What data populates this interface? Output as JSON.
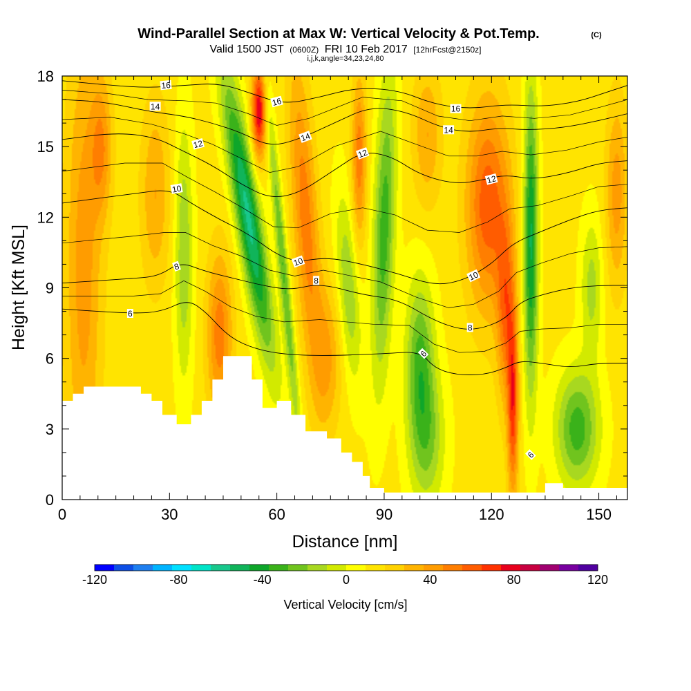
{
  "header": {
    "title": "Wind-Parallel Section at Max W: Vertical Velocity & Pot.Temp.",
    "copyright": "(C)",
    "valid_prefix": "Valid 1500 JST",
    "valid_utc": "(0600Z)",
    "valid_date": "FRI 10 Feb 2017",
    "forecast": "[12hrFcst@2150z]",
    "params": "i,j,k,angle=34,23,24,80"
  },
  "chart_data": {
    "type": "heatmap",
    "xlabel": "Distance [nm]",
    "ylabel": "Height [Kft MSL]",
    "xlim": [
      0,
      158
    ],
    "ylim": [
      0,
      18
    ],
    "x_ticks": [
      0,
      30,
      60,
      90,
      120,
      150
    ],
    "y_ticks": [
      0,
      3,
      6,
      9,
      12,
      15,
      18
    ],
    "colorbar": {
      "label": "Vertical Velocity [cm/s]",
      "range": [
        -120,
        120
      ],
      "tick_values": [
        -120,
        -80,
        -40,
        0,
        40,
        80,
        120
      ],
      "tick_labels": [
        "-120",
        "-80",
        "-40",
        "0",
        "40",
        "80",
        "120"
      ],
      "colors": [
        "#0000ff",
        "#0d4fe6",
        "#1f7ff0",
        "#00b4ff",
        "#00e0ff",
        "#00e4c8",
        "#18c88c",
        "#10b45a",
        "#0ea62a",
        "#3ab21a",
        "#70c41e",
        "#a8d820",
        "#d2ea00",
        "#ffff00",
        "#ffe400",
        "#ffd200",
        "#ffb400",
        "#ff9c00",
        "#ff7e00",
        "#ff5c00",
        "#ff3200",
        "#e8001c",
        "#c80040",
        "#a00070",
        "#7800a0",
        "#5000a0"
      ]
    },
    "terrain_kft": [
      [
        0,
        4.2
      ],
      [
        3,
        4.5
      ],
      [
        6,
        4.8
      ],
      [
        12,
        4.8
      ],
      [
        17,
        4.8
      ],
      [
        22,
        4.5
      ],
      [
        25,
        4.2
      ],
      [
        28,
        3.6
      ],
      [
        32,
        3.2
      ],
      [
        36,
        3.6
      ],
      [
        39,
        4.2
      ],
      [
        42,
        5.1
      ],
      [
        45,
        6.1
      ],
      [
        51,
        6.1
      ],
      [
        53,
        5.1
      ],
      [
        56,
        3.9
      ],
      [
        60,
        4.2
      ],
      [
        64,
        3.6
      ],
      [
        68,
        2.9
      ],
      [
        74,
        2.6
      ],
      [
        78,
        2.0
      ],
      [
        81,
        1.6
      ],
      [
        84,
        1.0
      ],
      [
        86,
        0.5
      ],
      [
        90,
        0.3
      ],
      [
        132,
        0.3
      ],
      [
        135,
        0.7
      ],
      [
        140,
        0.5
      ],
      [
        158,
        0.3
      ]
    ],
    "w_cells": [
      {
        "x": 6,
        "y": 10.0,
        "w": 30,
        "sx": 5,
        "sy": 10,
        "tilt": 0
      },
      {
        "x": 11,
        "y": 15.0,
        "w": 30,
        "sx": 3,
        "sy": 3,
        "tilt": 0
      },
      {
        "x": 34,
        "y": 10.5,
        "w": -30,
        "sx": 2.5,
        "sy": 5.5,
        "tilt": 0
      },
      {
        "x": 26,
        "y": 13.0,
        "w": 25,
        "sx": 4,
        "sy": 4,
        "tilt": 0
      },
      {
        "x": 44,
        "y": 7.0,
        "w": 40,
        "sx": 3.5,
        "sy": 3.5,
        "tilt": 0
      },
      {
        "x": 52,
        "y": 12.0,
        "w": -70,
        "sx": 3.5,
        "sy": 6,
        "tilt": -1.0
      },
      {
        "x": 55,
        "y": 16.5,
        "w": 70,
        "sx": 2,
        "sy": 2,
        "tilt": 0
      },
      {
        "x": 62,
        "y": 9.5,
        "w": -40,
        "sx": 1.5,
        "sy": 7.5,
        "tilt": -0.6
      },
      {
        "x": 68,
        "y": 12.0,
        "w": 40,
        "sx": 3.5,
        "sy": 6.5,
        "tilt": -0.4
      },
      {
        "x": 74,
        "y": 6.0,
        "w": 25,
        "sx": 4,
        "sy": 3,
        "tilt": 0
      },
      {
        "x": 80,
        "y": 9.0,
        "w": -30,
        "sx": 3,
        "sy": 4,
        "tilt": -0.4
      },
      {
        "x": 83,
        "y": 14.5,
        "w": 40,
        "sx": 2,
        "sy": 3.5,
        "tilt": 0
      },
      {
        "x": 90,
        "y": 11.5,
        "w": -45,
        "sx": 3,
        "sy": 6.5,
        "tilt": 0.2
      },
      {
        "x": 100,
        "y": 6.0,
        "w": -40,
        "sx": 4,
        "sy": 3.5,
        "tilt": 0
      },
      {
        "x": 102,
        "y": 2.5,
        "w": -30,
        "sx": 5,
        "sy": 3,
        "tilt": 0
      },
      {
        "x": 119,
        "y": 12.5,
        "w": 50,
        "sx": 6,
        "sy": 4.5,
        "tilt": 0
      },
      {
        "x": 126,
        "y": 4.0,
        "w": 55,
        "sx": 1.5,
        "sy": 4,
        "tilt": 0
      },
      {
        "x": 124,
        "y": 8.0,
        "w": 40,
        "sx": 2.5,
        "sy": 4,
        "tilt": 0
      },
      {
        "x": 131,
        "y": 11.0,
        "w": -60,
        "sx": 2,
        "sy": 6.5,
        "tilt": 0
      },
      {
        "x": 144,
        "y": 3.0,
        "w": -45,
        "sx": 6,
        "sy": 2.5,
        "tilt": 0
      },
      {
        "x": 148,
        "y": 9.0,
        "w": -25,
        "sx": 3,
        "sy": 3,
        "tilt": 0
      },
      {
        "x": 155,
        "y": 13.0,
        "w": 30,
        "sx": 3,
        "sy": 4,
        "tilt": 0
      },
      {
        "x": 102,
        "y": 15.5,
        "w": 25,
        "sx": 4,
        "sy": 3,
        "tilt": 0
      }
    ],
    "theta_isotherms": [
      {
        "value": "6",
        "points": [
          [
            0,
            8.1
          ],
          [
            20,
            7.9
          ],
          [
            28,
            8.0
          ],
          [
            35,
            8.5
          ],
          [
            40,
            8.0
          ],
          [
            46,
            7.0
          ],
          [
            52,
            6.5
          ],
          [
            60,
            6.2
          ],
          [
            72,
            6.1
          ],
          [
            90,
            6.2
          ],
          [
            100,
            6.3
          ],
          [
            104,
            5.6
          ],
          [
            110,
            5.3
          ],
          [
            118,
            5.3
          ],
          [
            124,
            5.6
          ],
          [
            128,
            5.9
          ],
          [
            134,
            5.8
          ],
          [
            142,
            5.6
          ],
          [
            150,
            5.8
          ],
          [
            158,
            5.8
          ]
        ]
      },
      {
        "value": "8",
        "points": [
          [
            0,
            9.2
          ],
          [
            20,
            9.4
          ],
          [
            27,
            9.5
          ],
          [
            33,
            10.1
          ],
          [
            40,
            9.7
          ],
          [
            48,
            9.4
          ],
          [
            56,
            9.1
          ],
          [
            64,
            8.9
          ],
          [
            72,
            9.2
          ],
          [
            84,
            8.7
          ],
          [
            94,
            8.5
          ],
          [
            104,
            7.6
          ],
          [
            112,
            7.2
          ],
          [
            118,
            7.3
          ],
          [
            124,
            7.7
          ],
          [
            128,
            8.4
          ],
          [
            134,
            8.7
          ],
          [
            142,
            9.0
          ],
          [
            150,
            9.1
          ],
          [
            158,
            9.1
          ]
        ]
      },
      {
        "value": "10",
        "points": [
          [
            0,
            12.6
          ],
          [
            20,
            13.0
          ],
          [
            30,
            13.2
          ],
          [
            36,
            12.6
          ],
          [
            44,
            11.9
          ],
          [
            52,
            11.3
          ],
          [
            60,
            10.4
          ],
          [
            66,
            10.1
          ],
          [
            74,
            10.3
          ],
          [
            84,
            10.0
          ],
          [
            94,
            9.6
          ],
          [
            104,
            9.1
          ],
          [
            112,
            9.3
          ],
          [
            120,
            10.0
          ],
          [
            126,
            10.9
          ],
          [
            134,
            11.4
          ],
          [
            142,
            11.9
          ],
          [
            150,
            12.3
          ],
          [
            158,
            12.4
          ]
        ]
      },
      {
        "value": "12",
        "points": [
          [
            0,
            15.3
          ],
          [
            15,
            15.6
          ],
          [
            26,
            15.4
          ],
          [
            34,
            14.8
          ],
          [
            42,
            14.2
          ],
          [
            50,
            13.4
          ],
          [
            58,
            12.8
          ],
          [
            66,
            13.0
          ],
          [
            76,
            14.0
          ],
          [
            84,
            14.8
          ],
          [
            92,
            14.6
          ],
          [
            100,
            13.8
          ],
          [
            110,
            13.4
          ],
          [
            118,
            13.6
          ],
          [
            124,
            13.8
          ],
          [
            132,
            13.6
          ],
          [
            142,
            13.9
          ],
          [
            150,
            14.3
          ],
          [
            158,
            14.4
          ]
        ]
      },
      {
        "value": "14",
        "points": [
          [
            0,
            17.0
          ],
          [
            12,
            16.9
          ],
          [
            24,
            16.5
          ],
          [
            34,
            16.3
          ],
          [
            42,
            16.0
          ],
          [
            50,
            15.6
          ],
          [
            58,
            15.0
          ],
          [
            66,
            15.3
          ],
          [
            76,
            16.0
          ],
          [
            86,
            16.7
          ],
          [
            96,
            16.5
          ],
          [
            106,
            15.8
          ],
          [
            114,
            15.6
          ],
          [
            122,
            15.8
          ],
          [
            130,
            15.7
          ],
          [
            140,
            15.8
          ],
          [
            150,
            16.1
          ],
          [
            158,
            16.4
          ]
        ]
      },
      {
        "value": "16",
        "points": [
          [
            0,
            17.8
          ],
          [
            14,
            17.6
          ],
          [
            24,
            17.5
          ],
          [
            34,
            17.6
          ],
          [
            44,
            17.7
          ],
          [
            54,
            17.2
          ],
          [
            62,
            16.8
          ],
          [
            72,
            17.1
          ],
          [
            82,
            17.5
          ],
          [
            94,
            17.4
          ],
          [
            104,
            16.8
          ],
          [
            114,
            16.6
          ],
          [
            124,
            16.8
          ],
          [
            134,
            16.7
          ],
          [
            144,
            16.9
          ],
          [
            152,
            17.3
          ],
          [
            158,
            17.6
          ]
        ]
      }
    ],
    "theta_labels": [
      {
        "text": "6",
        "x": 19,
        "y": 7.9,
        "angle": 0
      },
      {
        "text": "8",
        "x": 32,
        "y": 9.9,
        "angle": -20
      },
      {
        "text": "10",
        "x": 32,
        "y": 13.2,
        "angle": -10
      },
      {
        "text": "12",
        "x": 38,
        "y": 15.1,
        "angle": -15
      },
      {
        "text": "14",
        "x": 26,
        "y": 16.7,
        "angle": 0
      },
      {
        "text": "16",
        "x": 29,
        "y": 17.6,
        "angle": -5
      },
      {
        "text": "10",
        "x": 66,
        "y": 10.1,
        "angle": -20
      },
      {
        "text": "8",
        "x": 71,
        "y": 9.3,
        "angle": 0
      },
      {
        "text": "14",
        "x": 68,
        "y": 15.4,
        "angle": -20
      },
      {
        "text": "16",
        "x": 60,
        "y": 16.9,
        "angle": -15
      },
      {
        "text": "12",
        "x": 84,
        "y": 14.7,
        "angle": -20
      },
      {
        "text": "16",
        "x": 110,
        "y": 16.6,
        "angle": 0
      },
      {
        "text": "14",
        "x": 108,
        "y": 15.7,
        "angle": 0
      },
      {
        "text": "12",
        "x": 120,
        "y": 13.6,
        "angle": -15
      },
      {
        "text": "10",
        "x": 115,
        "y": 9.5,
        "angle": -25
      },
      {
        "text": "8",
        "x": 114,
        "y": 7.3,
        "angle": 0
      },
      {
        "text": "6",
        "x": 101,
        "y": 6.2,
        "angle": -45
      },
      {
        "text": "6",
        "x": 131,
        "y": 1.9,
        "angle": -45
      }
    ]
  }
}
